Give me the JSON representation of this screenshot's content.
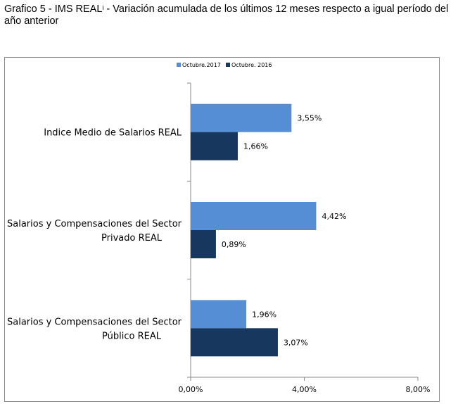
{
  "title": {
    "prefix": "Grafico 5 - IMS REAL",
    "superscript": "i",
    "rest": "  - Variación acumulada de los últimos 12 meses respecto a igual período del año anterior"
  },
  "chart_data": {
    "type": "bar",
    "orientation": "horizontal",
    "categories": [
      [
        "Indice Medio de Salarios REAL"
      ],
      [
        "Salarios y Compensaciones del Sector",
        "Privado REAL"
      ],
      [
        "Salarios y Compensaciones del Sector",
        "Público REAL"
      ]
    ],
    "series": [
      {
        "name": "Octubre.2017",
        "values": [
          3.55,
          4.42,
          1.96
        ],
        "labels": [
          "3,55%",
          "4,42%",
          "1,96%"
        ],
        "color": "#558ED5"
      },
      {
        "name": "Octubre. 2016",
        "values": [
          1.66,
          0.89,
          3.07
        ],
        "labels": [
          "1,66%",
          "0,89%",
          "3,07%"
        ],
        "color": "#17375E"
      }
    ],
    "xlim": [
      0,
      8
    ],
    "xticks": [
      0,
      4,
      8
    ],
    "xtick_labels": [
      "0,00%",
      "4,00%",
      "8,00%"
    ],
    "legend_position": "top",
    "grid": false
  }
}
